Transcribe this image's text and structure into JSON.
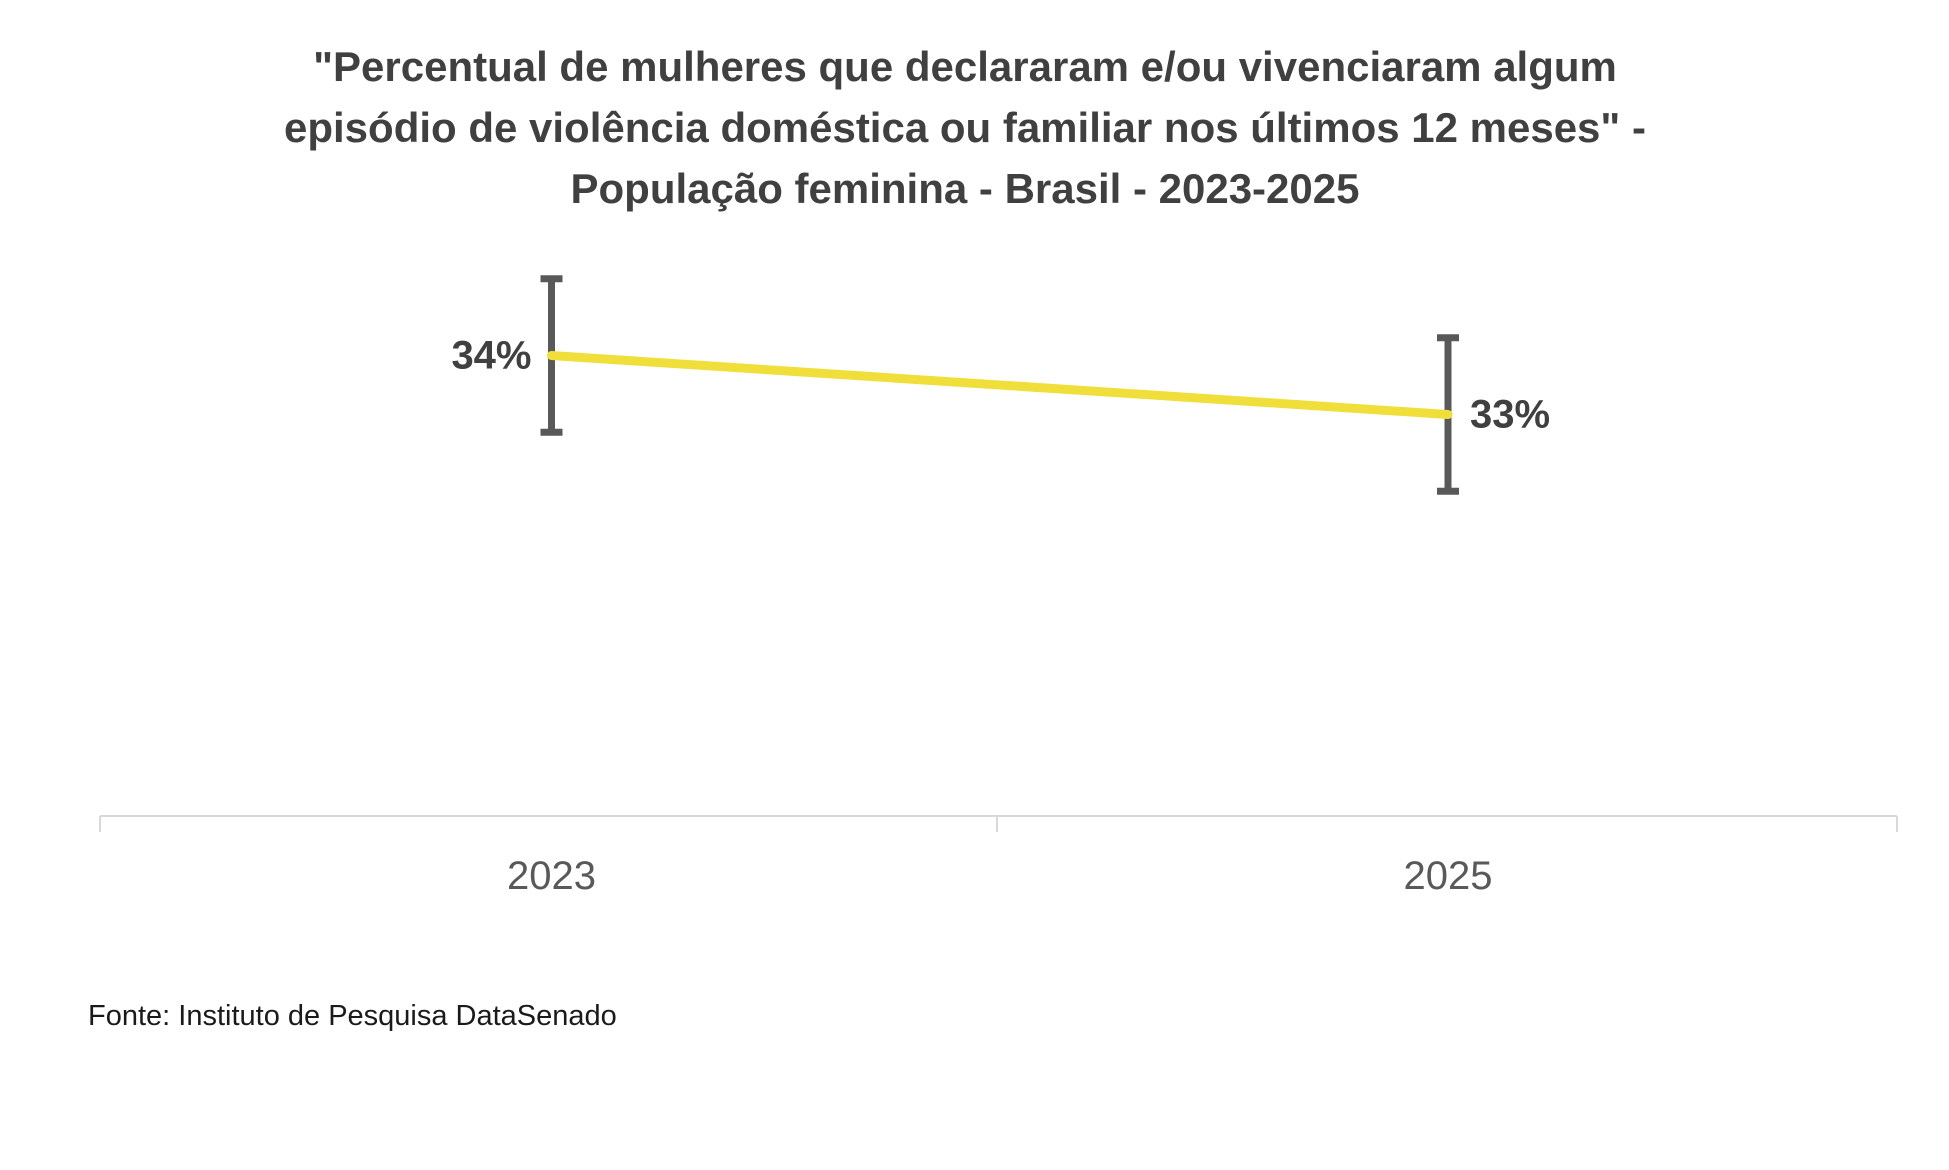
{
  "chart_data": {
    "type": "line",
    "title": "\"Percentual de mulheres que declararam e/ou vivenciaram algum episódio de violência doméstica ou familiar nos últimos 12 meses\" - População feminina - Brasil - 2023-2025",
    "title_display": "\"Percentual de mulheres que declararam e/ou vivenciaram algum\nepisódio de violência doméstica ou familiar nos últimos 12 meses\" -\nPopulação feminina - Brasil - 2023-2025",
    "categories": [
      "2023",
      "2025"
    ],
    "series": [
      {
        "name": "Percentual de mulheres",
        "values": [
          34,
          33
        ]
      }
    ],
    "value_labels": [
      "34%",
      "33%"
    ],
    "error_margin_pp": 1.3,
    "has_error_bars": true,
    "xlabel": "",
    "ylabel": "",
    "grid": false,
    "legend": "none",
    "source": "Fonte: Instituto de Pesquisa DataSenado",
    "colors": {
      "line": "#F0DF3A",
      "error_bar": "#595959",
      "axis": "#D9D9D9",
      "title_text": "#404040",
      "data_label_text": "#404040",
      "axis_label_text": "#595959",
      "source_text": "#1A1A1A",
      "background": "#FFFFFF"
    }
  }
}
